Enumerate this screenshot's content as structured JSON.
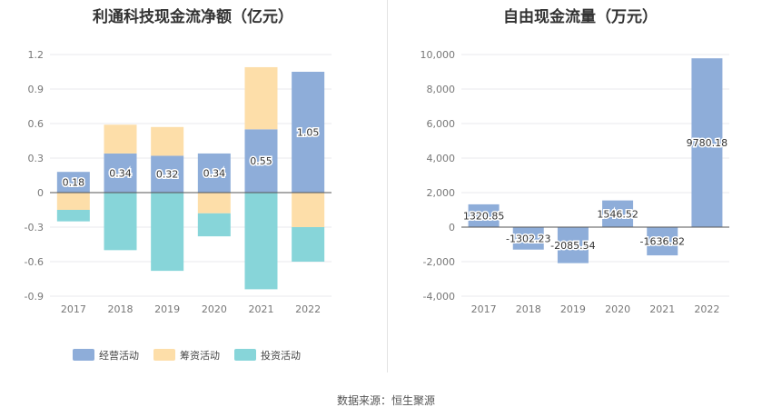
{
  "source": "数据来源：恒生聚源",
  "chart_data": [
    {
      "type": "bar",
      "stacked": true,
      "title": "利通科技现金流净额（亿元）",
      "categories": [
        "2017",
        "2018",
        "2019",
        "2020",
        "2021",
        "2022"
      ],
      "ylim": [
        -0.9,
        1.2
      ],
      "yticks": [
        -0.9,
        -0.6,
        -0.3,
        0,
        0.3,
        0.6,
        0.9,
        1.2
      ],
      "legend_position": "bottom",
      "series": [
        {
          "name": "经营活动",
          "color": "#8eadd9",
          "values": [
            0.18,
            0.34,
            0.32,
            0.34,
            0.55,
            1.05
          ],
          "labels": [
            "0.18",
            "0.34",
            "0.32",
            "0.34",
            "0.55",
            "1.05"
          ]
        },
        {
          "name": "筹资活动",
          "color": "#fddea9",
          "values": [
            -0.15,
            0.25,
            0.25,
            -0.18,
            0.54,
            -0.3
          ]
        },
        {
          "name": "投资活动",
          "color": "#87d5d9",
          "values": [
            -0.1,
            -0.5,
            -0.68,
            -0.2,
            -0.84,
            -0.3
          ]
        }
      ]
    },
    {
      "type": "bar",
      "title": "自由现金流量（万元）",
      "categories": [
        "2017",
        "2018",
        "2019",
        "2020",
        "2021",
        "2022"
      ],
      "ylim": [
        -4000,
        10000
      ],
      "yticks": [
        -4000,
        -2000,
        0,
        2000,
        4000,
        6000,
        8000,
        10000
      ],
      "ytick_labels": [
        "-4,000",
        "-2,000",
        "0",
        "2,000",
        "4,000",
        "6,000",
        "8,000",
        "10,000"
      ],
      "color": "#8eadd9",
      "values": [
        1320.85,
        -1302.23,
        -2085.54,
        1546.52,
        -1636.82,
        9780.18
      ],
      "labels": [
        "1320.85",
        "-1302.23",
        "-2085.54",
        "1546.52",
        "-1636.82",
        "9780.18"
      ]
    }
  ]
}
